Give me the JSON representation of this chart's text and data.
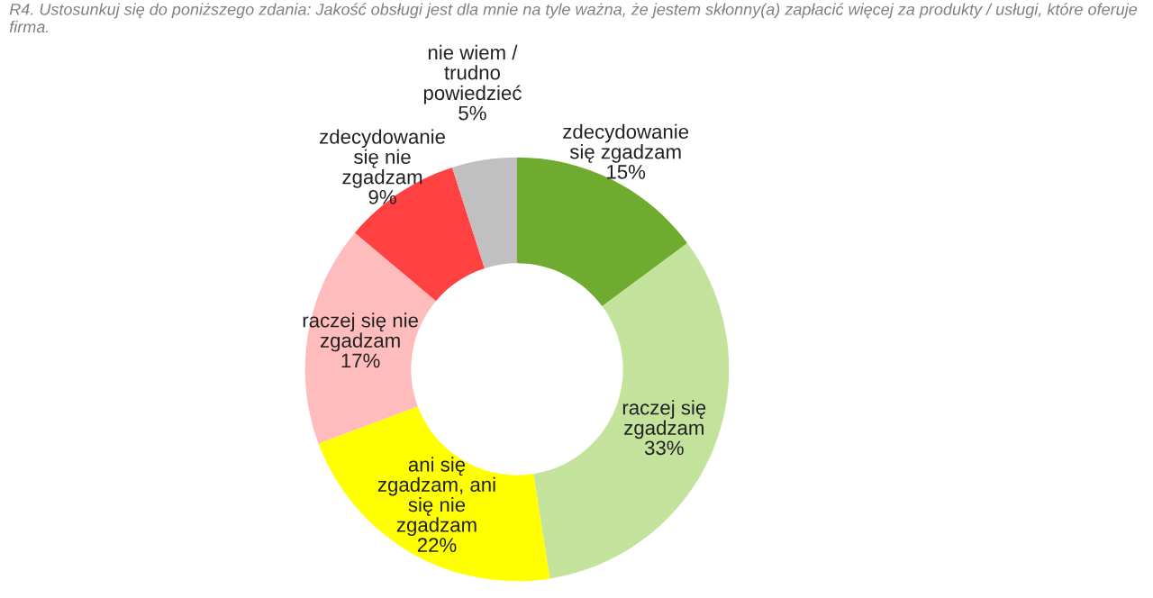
{
  "chart_data": {
    "type": "donut",
    "title": "R4. Ustosunkuj się do poniższego zdania: Jakość obsługi jest dla mnie na tyle ważna, że jestem skłonny(a) zapłacić więcej za produkty / usługi, które oferuje firma.",
    "categories": [
      "zdecydowanie\nsię zgadzam",
      "raczej się\nzgadzam",
      "ani się\nzgadzam, ani\nsię nie\nzgadzam",
      "raczej się nie\nzgadzam",
      "zdecydowanie\nsię nie\nzgadzam",
      "nie wiem /\ntrudno\npowiedzieć"
    ],
    "values": [
      15,
      33,
      22,
      17,
      9,
      5
    ],
    "value_labels": [
      "15%",
      "33%",
      "22%",
      "17%",
      "9%",
      "5%"
    ],
    "colors": [
      "#6eab2e",
      "#c3e29c",
      "#ffff00",
      "#ffbcbc",
      "#ff4141",
      "#c0c0c0"
    ],
    "legend": false
  }
}
